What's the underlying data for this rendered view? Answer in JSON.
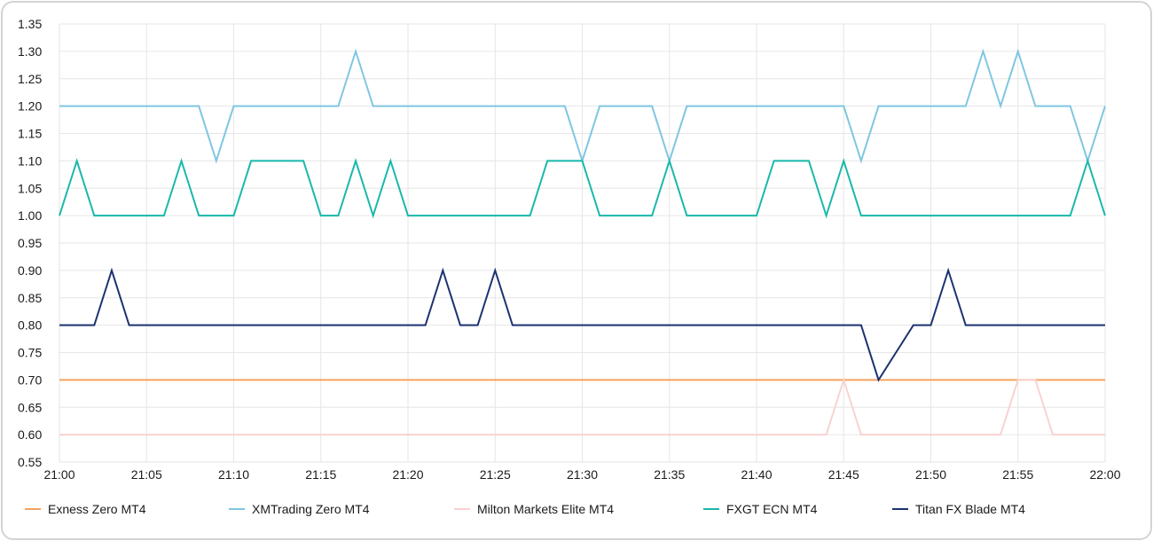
{
  "chart_data": {
    "type": "line",
    "title": "",
    "xlabel": "",
    "ylabel": "",
    "ylim": [
      0.55,
      1.35
    ],
    "yticks": [
      "0.55",
      "0.60",
      "0.65",
      "0.70",
      "0.75",
      "0.80",
      "0.85",
      "0.90",
      "0.95",
      "1.00",
      "1.05",
      "1.10",
      "1.15",
      "1.20",
      "1.25",
      "1.30",
      "1.35"
    ],
    "xticks": [
      "21:00",
      "21:05",
      "21:10",
      "21:15",
      "21:20",
      "21:25",
      "21:30",
      "21:35",
      "21:40",
      "21:45",
      "21:50",
      "21:55",
      "22:00"
    ],
    "x_range_minutes": [
      0,
      60
    ],
    "grid": true,
    "legend_position": "bottom",
    "x_minutes": [
      0,
      1,
      2,
      3,
      4,
      5,
      6,
      7,
      8,
      9,
      10,
      11,
      12,
      13,
      14,
      15,
      16,
      17,
      18,
      19,
      20,
      21,
      22,
      23,
      24,
      25,
      26,
      27,
      28,
      29,
      30,
      31,
      32,
      33,
      34,
      35,
      36,
      37,
      38,
      39,
      40,
      41,
      42,
      43,
      44,
      45,
      46,
      47,
      48,
      49,
      50,
      51,
      52,
      53,
      54,
      55,
      56,
      57,
      58,
      59,
      60
    ],
    "series": [
      {
        "name": "Exness Zero MT4",
        "color": "#f5a25d",
        "values": [
          0.7,
          0.7,
          0.7,
          0.7,
          0.7,
          0.7,
          0.7,
          0.7,
          0.7,
          0.7,
          0.7,
          0.7,
          0.7,
          0.7,
          0.7,
          0.7,
          0.7,
          0.7,
          0.7,
          0.7,
          0.7,
          0.7,
          0.7,
          0.7,
          0.7,
          0.7,
          0.7,
          0.7,
          0.7,
          0.7,
          0.7,
          0.7,
          0.7,
          0.7,
          0.7,
          0.7,
          0.7,
          0.7,
          0.7,
          0.7,
          0.7,
          0.7,
          0.7,
          0.7,
          0.7,
          0.7,
          0.7,
          0.7,
          0.7,
          0.7,
          0.7,
          0.7,
          0.7,
          0.7,
          0.7,
          0.7,
          0.7,
          0.7,
          0.7,
          0.7,
          0.7
        ]
      },
      {
        "name": "XMTrading Zero MT4",
        "color": "#7fc6e2",
        "values": [
          1.2,
          1.2,
          1.2,
          1.2,
          1.2,
          1.2,
          1.2,
          1.2,
          1.2,
          1.1,
          1.2,
          1.2,
          1.2,
          1.2,
          1.2,
          1.2,
          1.2,
          1.3,
          1.2,
          1.2,
          1.2,
          1.2,
          1.2,
          1.2,
          1.2,
          1.2,
          1.2,
          1.2,
          1.2,
          1.2,
          1.1,
          1.2,
          1.2,
          1.2,
          1.2,
          1.1,
          1.2,
          1.2,
          1.2,
          1.2,
          1.2,
          1.2,
          1.2,
          1.2,
          1.2,
          1.2,
          1.1,
          1.2,
          1.2,
          1.2,
          1.2,
          1.2,
          1.2,
          1.3,
          1.2,
          1.3,
          1.2,
          1.2,
          1.2,
          1.1,
          1.2
        ]
      },
      {
        "name": "Milton Markets Elite MT4",
        "color": "#f9d2d2",
        "values": [
          0.6,
          0.6,
          0.6,
          0.6,
          0.6,
          0.6,
          0.6,
          0.6,
          0.6,
          0.6,
          0.6,
          0.6,
          0.6,
          0.6,
          0.6,
          0.6,
          0.6,
          0.6,
          0.6,
          0.6,
          0.6,
          0.6,
          0.6,
          0.6,
          0.6,
          0.6,
          0.6,
          0.6,
          0.6,
          0.6,
          0.6,
          0.6,
          0.6,
          0.6,
          0.6,
          0.6,
          0.6,
          0.6,
          0.6,
          0.6,
          0.6,
          0.6,
          0.6,
          0.6,
          0.6,
          0.7,
          0.6,
          0.6,
          0.6,
          0.6,
          0.6,
          0.6,
          0.6,
          0.6,
          0.6,
          0.7,
          0.7,
          0.6,
          0.6,
          0.6,
          0.6
        ]
      },
      {
        "name": "FXGT ECN MT4",
        "color": "#18b8aa",
        "values": [
          1.0,
          1.1,
          1.0,
          1.0,
          1.0,
          1.0,
          1.0,
          1.1,
          1.0,
          1.0,
          1.0,
          1.1,
          1.1,
          1.1,
          1.1,
          1.0,
          1.0,
          1.1,
          1.0,
          1.1,
          1.0,
          1.0,
          1.0,
          1.0,
          1.0,
          1.0,
          1.0,
          1.0,
          1.1,
          1.1,
          1.1,
          1.0,
          1.0,
          1.0,
          1.0,
          1.1,
          1.0,
          1.0,
          1.0,
          1.0,
          1.0,
          1.1,
          1.1,
          1.1,
          1.0,
          1.1,
          1.0,
          1.0,
          1.0,
          1.0,
          1.0,
          1.0,
          1.0,
          1.0,
          1.0,
          1.0,
          1.0,
          1.0,
          1.0,
          1.1,
          1.0
        ]
      },
      {
        "name": "Titan FX Blade MT4",
        "color": "#1b3270",
        "values": [
          0.8,
          0.8,
          0.8,
          0.9,
          0.8,
          0.8,
          0.8,
          0.8,
          0.8,
          0.8,
          0.8,
          0.8,
          0.8,
          0.8,
          0.8,
          0.8,
          0.8,
          0.8,
          0.8,
          0.8,
          0.8,
          0.8,
          0.9,
          0.8,
          0.8,
          0.9,
          0.8,
          0.8,
          0.8,
          0.8,
          0.8,
          0.8,
          0.8,
          0.8,
          0.8,
          0.8,
          0.8,
          0.8,
          0.8,
          0.8,
          0.8,
          0.8,
          0.8,
          0.8,
          0.8,
          0.8,
          0.8,
          0.7,
          0.75,
          0.8,
          0.8,
          0.9,
          0.8,
          0.8,
          0.8,
          0.8,
          0.8,
          0.8,
          0.8,
          0.8,
          0.8
        ]
      }
    ]
  }
}
